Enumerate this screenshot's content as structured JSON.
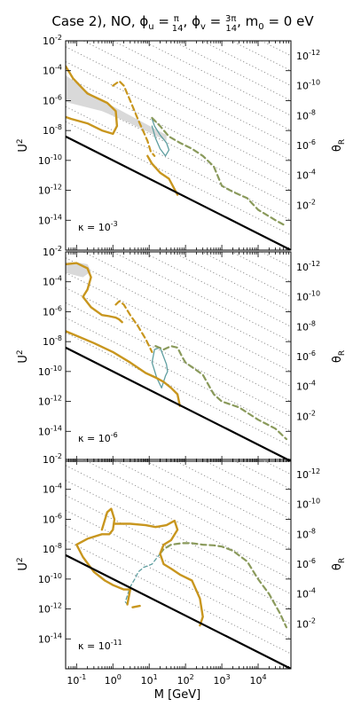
{
  "chart_data": {
    "type": "line",
    "title": "Case 2), NO, φᵤ = π/14, φᵥ = 3π/14, m₀ = 0 eV",
    "title_parts": {
      "prefix": "Case 2), NO, ",
      "phi": "ϕ",
      "u": "u",
      "v": "v",
      "pi": "π",
      "pi3": "3π",
      "den": "14",
      "m0": "m",
      "m0sub": "0",
      "suffix": " = 0 eV"
    },
    "xlabel": "M [GeV]",
    "ylabel_left": "U",
    "ylabel_left_sup": "2",
    "ylabel_right": "θ",
    "ylabel_right_sub": "R",
    "x_scale": "log",
    "xlim": [
      0.05,
      80000
    ],
    "ylim": [
      1e-16,
      0.01
    ],
    "x_ticks": [
      {
        "exp": "-1",
        "value": 0.1
      },
      {
        "exp": "0",
        "value": 1
      },
      {
        "exp": "1",
        "value": 10
      },
      {
        "exp": "2",
        "value": 100
      },
      {
        "exp": "3",
        "value": 1000
      },
      {
        "exp": "4",
        "value": 10000
      }
    ],
    "y_ticks_left": [
      {
        "exp": "-2",
        "value": 0.01
      },
      {
        "exp": "-4",
        "value": 0.0001
      },
      {
        "exp": "-6",
        "value": 1e-06
      },
      {
        "exp": "-8",
        "value": 1e-08
      },
      {
        "exp": "-10",
        "value": 1e-10
      },
      {
        "exp": "-12",
        "value": 1e-12
      },
      {
        "exp": "-14",
        "value": 1e-14
      }
    ],
    "y_ticks_right": [
      {
        "exp": "-12",
        "pos": 0.001
      },
      {
        "exp": "-10",
        "pos": 1e-05
      },
      {
        "exp": "-8",
        "pos": 1e-07
      },
      {
        "exp": "-6",
        "pos": 1e-09
      },
      {
        "exp": "-4",
        "pos": 1e-11
      },
      {
        "exp": "-2",
        "pos": 1e-13
      }
    ],
    "colors": {
      "gold": "#c8961e",
      "olive": "#8a9a5b",
      "teal": "#5e9ea0",
      "gray_fill": "#d9d9d9",
      "seesaw": "#000000",
      "dotted": "#888888"
    },
    "seesaw_line": {
      "x": [
        0.05,
        80000
      ],
      "y": [
        4e-09,
        1e-16
      ]
    },
    "panels": [
      {
        "kappa_prefix": "κ = 10",
        "kappa_exp": "-3",
        "gray_region": {
          "x": [
            0.05,
            0.05,
            0.5,
            3,
            30,
            30,
            3,
            0.3
          ],
          "y": [
            5e-05,
            8e-07,
            2e-07,
            3e-08,
            2e-09,
            5e-09,
            1e-07,
            2e-06
          ]
        },
        "gold_solid": [
          {
            "x": [
              0.05,
              0.08,
              0.2,
              0.7,
              1.2,
              1.3,
              1.0,
              0.5,
              0.2,
              0.07,
              0.05
            ],
            "y": [
              0.0002,
              3e-05,
              3e-06,
              7e-07,
              2e-07,
              2e-08,
              6e-09,
              1e-08,
              3e-08,
              6e-08,
              8e-08
            ]
          },
          {
            "x": [
              9,
              12,
              20,
              35,
              60
            ],
            "y": [
              2e-10,
              6e-11,
              1.5e-11,
              6e-12,
              5e-13
            ]
          }
        ],
        "gold_dashed": [
          {
            "x": [
              1.0,
              1.5,
              2,
              3,
              5,
              7,
              9,
              11,
              14
            ],
            "y": [
              1e-05,
              2e-05,
              1e-05,
              1e-06,
              5e-08,
              8e-09,
              2e-09,
              4e-10,
              2e-10
            ]
          }
        ],
        "olive_dashed": [
          {
            "x": [
              12,
              20,
              35,
              70,
              150,
              300,
              600,
              1000,
              2000,
              5000,
              10000,
              30000,
              60000
            ],
            "y": [
              7e-08,
              2e-08,
              4e-09,
              1.5e-09,
              6e-10,
              2e-10,
              4e-11,
              2e-12,
              8e-13,
              3e-13,
              5e-14,
              1e-14,
              4e-15
            ]
          }
        ],
        "teal_solid": [
          {
            "x": [
              12,
              14,
              20,
              30,
              35,
              28,
              20,
              15,
              12
            ],
            "y": [
              6e-08,
              2e-08,
              5e-09,
              1.5e-09,
              5e-10,
              2e-10,
              6e-10,
              3e-09,
              2e-08
            ]
          }
        ]
      },
      {
        "kappa_prefix": "κ = 10",
        "kappa_exp": "-6",
        "gray_region": {
          "x": [
            0.05,
            0.05,
            0.15,
            0.25,
            0.2,
            0.1
          ],
          "y": [
            0.002,
            0.0004,
            0.0002,
            0.0005,
            0.0015,
            0.002
          ]
        },
        "gold_solid": [
          {
            "x": [
              0.05,
              0.1,
              0.2,
              0.25,
              0.2,
              0.15,
              0.25,
              0.5,
              0.8,
              1.2,
              1.5,
              1.8
            ],
            "y": [
              0.0015,
              0.0018,
              0.0008,
              0.0002,
              3e-05,
              1e-05,
              2e-06,
              6e-07,
              5e-07,
              4e-07,
              3e-07,
              2e-07
            ]
          },
          {
            "x": [
              0.05,
              0.3,
              1,
              3,
              8,
              15,
              25,
              40,
              60,
              70
            ],
            "y": [
              5e-08,
              8e-09,
              2e-09,
              4e-10,
              8e-11,
              4e-11,
              2e-11,
              8e-12,
              3e-12,
              5e-13
            ]
          }
        ],
        "gold_dashed": [
          {
            "x": [
              1.2,
              1.5,
              2,
              3,
              5,
              8,
              12
            ],
            "y": [
              3e-06,
              5e-06,
              3e-06,
              6e-07,
              1e-07,
              1.5e-08,
              2e-09
            ]
          }
        ],
        "olive_dashed": [
          {
            "x": [
              15,
              25,
              40,
              60,
              80,
              100,
              150,
              300,
              600,
              1000,
              3000,
              10000,
              30000,
              60000
            ],
            "y": [
              5e-09,
              3e-09,
              5e-09,
              4e-09,
              1e-09,
              4e-10,
              2e-10,
              6e-11,
              3e-12,
              1e-12,
              4e-13,
              6e-14,
              1.5e-14,
              3e-15
            ]
          }
        ],
        "teal_solid": [
          {
            "x": [
              12,
              14,
              20,
              30,
              32,
              28,
              22,
              16,
              12
            ],
            "y": [
              4e-10,
              3e-09,
              4e-09,
              3e-10,
              1e-10,
              5e-11,
              8e-12,
              4e-11,
              4e-10
            ]
          }
        ]
      },
      {
        "kappa_prefix": "κ = 10",
        "kappa_exp": "-11",
        "gray_region": {
          "x": [],
          "y": []
        },
        "gold_solid": [
          {
            "x": [
              0.5,
              0.7,
              0.9,
              1.1,
              1.0,
              0.8,
              0.5,
              0.2,
              0.1,
              0.15,
              0.3,
              0.6,
              1,
              2,
              3,
              2.5
            ],
            "y": [
              2e-07,
              3e-06,
              5e-06,
              1e-06,
              2e-07,
              1e-07,
              1e-07,
              5e-08,
              2e-08,
              3e-09,
              3e-10,
              8e-11,
              4e-11,
              2e-11,
              2e-11,
              2e-12
            ]
          },
          {
            "x": [
              1.1,
              3,
              8,
              15,
              30,
              50,
              60,
              40,
              25,
              20,
              25,
              40,
              70,
              150,
              250,
              300,
              250
            ],
            "y": [
              5e-07,
              5e-07,
              4e-07,
              3e-07,
              4e-07,
              8e-07,
              2e-07,
              4e-08,
              2e-08,
              5e-09,
              1e-09,
              5e-10,
              2e-10,
              8e-11,
              5e-12,
              3e-13,
              8e-14
            ]
          },
          {
            "x": [
              3.5,
              5.5
            ],
            "y": [
              1.3e-12,
              1.6e-12
            ]
          }
        ],
        "gold_dashed": [],
        "olive_dashed": [
          {
            "x": [
              20,
              25,
              40,
              80,
              150,
              300,
              600,
              1000,
              2000,
              5000,
              10000,
              20000,
              40000,
              60000
            ],
            "y": [
              5e-09,
              1e-08,
              2e-08,
              2.5e-08,
              2.5e-08,
              2e-08,
              1.8e-08,
              1.5e-08,
              8e-09,
              1.5e-09,
              1e-10,
              1e-11,
              5e-13,
              6e-14
            ]
          }
        ],
        "teal_dashed": [
          {
            "x": [
              20,
              12,
              7,
              5,
              4,
              3,
              2.5,
              2.2,
              2.5
            ],
            "y": [
              5e-09,
              1e-09,
              6e-10,
              3e-10,
              1e-10,
              3e-11,
              8e-12,
              3e-12,
              2e-12
            ]
          }
        ]
      }
    ]
  }
}
